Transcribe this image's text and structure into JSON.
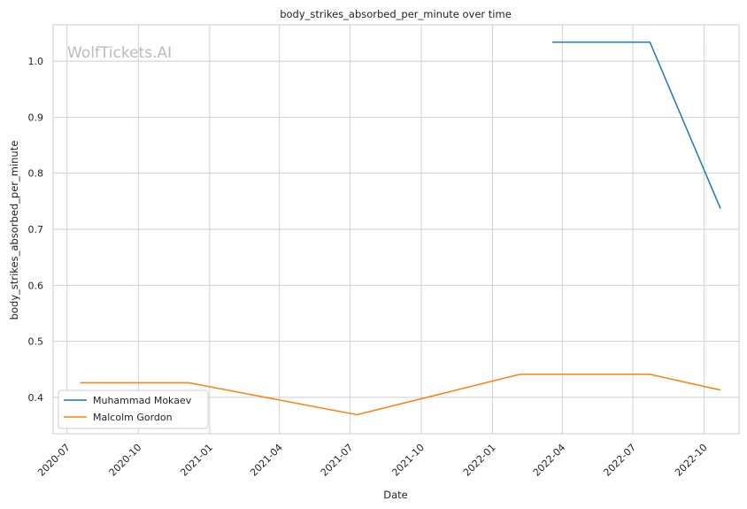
{
  "chart_data": {
    "type": "line",
    "title": "body_strikes_absorbed_per_minute over time",
    "xlabel": "Date",
    "ylabel": "body_strikes_absorbed_per_minute",
    "xlim": [
      "2020-06-13",
      "2022-11-15"
    ],
    "ylim": [
      0.335,
      1.065
    ],
    "x_ticks": [
      "2020-07",
      "2020-10",
      "2021-01",
      "2021-04",
      "2021-07",
      "2021-10",
      "2022-01",
      "2022-04",
      "2022-07",
      "2022-10"
    ],
    "y_ticks": [
      0.4,
      0.5,
      0.6,
      0.7,
      0.8,
      0.9,
      1.0
    ],
    "y_tick_labels": [
      "0.4",
      "0.5",
      "0.6",
      "0.7",
      "0.8",
      "0.9",
      "1.0"
    ],
    "grid": true,
    "legend_position": "lower-left",
    "watermark": "WolfTickets.AI",
    "series": [
      {
        "name": "Muhammad Mokaev",
        "color": "#1f77b4",
        "points": [
          {
            "x": "2022-03-19",
            "y": 1.034
          },
          {
            "x": "2022-07-23",
            "y": 1.034
          },
          {
            "x": "2022-10-22",
            "y": 0.737
          }
        ]
      },
      {
        "name": "Malcolm Gordon",
        "color": "#ff7f0e",
        "points": [
          {
            "x": "2020-07-18",
            "y": 0.426
          },
          {
            "x": "2020-12-05",
            "y": 0.426
          },
          {
            "x": "2021-07-10",
            "y": 0.369
          },
          {
            "x": "2022-02-05",
            "y": 0.441
          },
          {
            "x": "2022-07-23",
            "y": 0.441
          },
          {
            "x": "2022-10-22",
            "y": 0.413
          }
        ]
      }
    ]
  }
}
